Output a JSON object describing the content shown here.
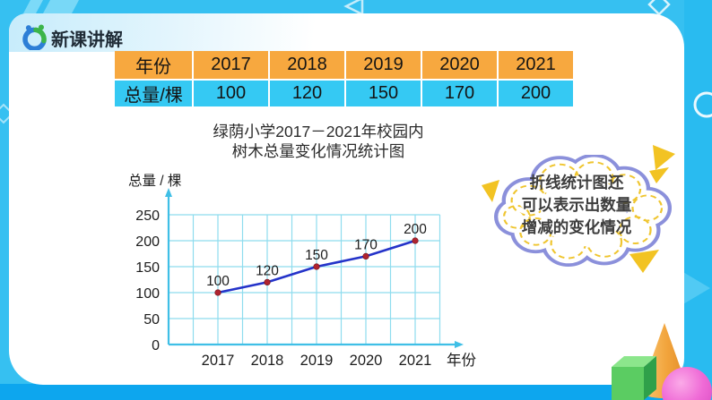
{
  "slide": {
    "section_badge": "新课讲解"
  },
  "table": {
    "rows": [
      {
        "label": "年份",
        "values": [
          "2017",
          "2018",
          "2019",
          "2020",
          "2021"
        ]
      },
      {
        "label": "总量/棵",
        "values": [
          "100",
          "120",
          "150",
          "170",
          "200"
        ]
      }
    ],
    "header_bg": "#F7A83F",
    "value_bg": "#35C9F3"
  },
  "chart": {
    "title_lines": [
      "绿荫小学2017－2021年校园内",
      "树木总量变化情况统计图"
    ]
  },
  "chart_data": {
    "type": "line",
    "title": "绿荫小学2017－2021年校园内树木总量变化情况统计图",
    "x": [
      "2017",
      "2018",
      "2019",
      "2020",
      "2021"
    ],
    "series": [
      {
        "name": "树木总量",
        "values": [
          100,
          120,
          150,
          170,
          200
        ]
      }
    ],
    "point_labels": [
      "100",
      "120",
      "150",
      "170",
      "200"
    ],
    "xlabel": "年份",
    "ylabel": "总量 / 棵",
    "ylim": [
      0,
      250
    ],
    "y_tick_step": 50,
    "grid": true,
    "x_subdivisions": 2,
    "legend": "none",
    "line_color": "#2433C9",
    "point_color": "#AF2430",
    "axis_color": "#3FBFE6",
    "grid_color": "#8EDCEE"
  },
  "bubble": {
    "lines": [
      "折线统计图还",
      "可以表示出数量",
      "增减的变化情况"
    ],
    "border_color": "#8B90DB",
    "dash_color": "#EFC52F"
  }
}
